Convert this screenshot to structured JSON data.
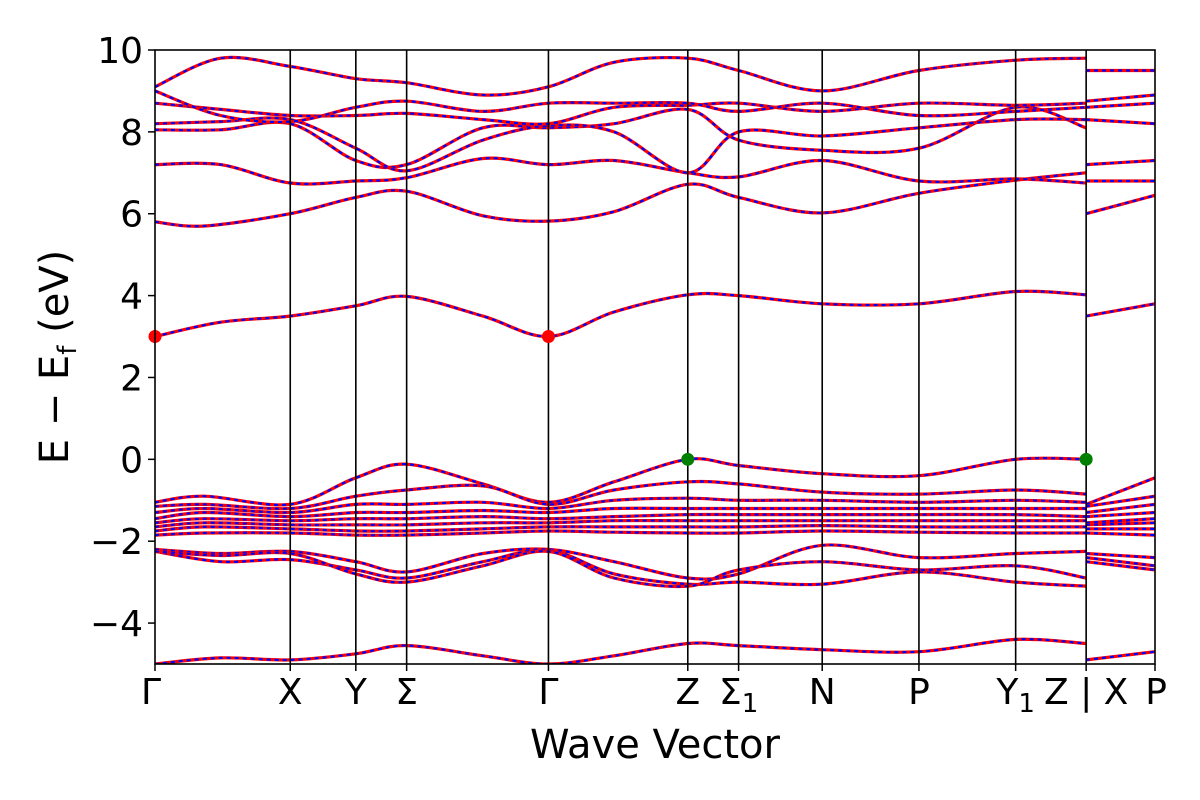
{
  "chart_data": {
    "type": "line",
    "xlabel": "Wave Vector",
    "ylabel_main": "E − E",
    "ylabel_sub": "f",
    "ylabel_unit": "(eV)",
    "ylim": [
      -5,
      10
    ],
    "y_ticks": [
      {
        "value": -4,
        "label": "−4"
      },
      {
        "value": -2,
        "label": "−2"
      },
      {
        "value": 0,
        "label": "0"
      },
      {
        "value": 2,
        "label": "2"
      },
      {
        "value": 4,
        "label": "4"
      },
      {
        "value": 6,
        "label": "6"
      },
      {
        "value": 8,
        "label": "8"
      },
      {
        "value": 10,
        "label": "10"
      }
    ],
    "xlim": [
      0,
      12.2
    ],
    "kpoints": [
      {
        "x": 0.0,
        "label": "Γ",
        "sub": ""
      },
      {
        "x": 1.65,
        "label": "X",
        "sub": ""
      },
      {
        "x": 2.45,
        "label": "Y",
        "sub": ""
      },
      {
        "x": 3.07,
        "label": "Σ",
        "sub": ""
      },
      {
        "x": 4.8,
        "label": "Γ",
        "sub": ""
      },
      {
        "x": 6.5,
        "label": "Z",
        "sub": ""
      },
      {
        "x": 7.12,
        "label": "Σ",
        "sub": "1"
      },
      {
        "x": 8.14,
        "label": "N",
        "sub": ""
      },
      {
        "x": 9.32,
        "label": "P",
        "sub": ""
      },
      {
        "x": 10.5,
        "label": "Y",
        "sub": "1"
      },
      {
        "x": 11.36,
        "label": "Z | X",
        "sub": ""
      },
      {
        "x": 12.2,
        "label": "P",
        "sub": ""
      }
    ],
    "band_colors": {
      "solid": "#ff0000",
      "dashed": "#0000ff"
    },
    "cbm_color": "#ff0000",
    "vbm_color": "#008000",
    "cbm_points": [
      {
        "x": 0.0,
        "y": 3.0
      },
      {
        "x": 4.8,
        "y": 3.0
      }
    ],
    "vbm_points": [
      {
        "x": 6.5,
        "y": 0.0
      },
      {
        "x": 11.36,
        "y": 0.0
      }
    ],
    "series": [
      {
        "x": [
          0,
          0.8,
          1.65,
          2.45,
          3.07,
          4.0,
          4.8,
          5.6,
          6.5,
          7.12,
          8.14,
          9.32,
          10.5,
          11.36
        ],
        "y": [
          3.0,
          3.35,
          3.5,
          3.75,
          3.98,
          3.5,
          3.0,
          3.6,
          4.02,
          4.0,
          3.8,
          3.8,
          4.1,
          4.02
        ]
      },
      {
        "x": [
          11.36,
          12.2
        ],
        "y": [
          3.5,
          3.8
        ]
      },
      {
        "x": [
          0,
          0.6,
          1.65,
          2.45,
          3.07,
          4.0,
          4.8,
          5.6,
          6.5,
          7.12,
          8.14,
          9.32,
          10.5,
          11.36
        ],
        "y": [
          5.8,
          5.7,
          6.0,
          6.4,
          6.55,
          5.95,
          5.82,
          6.05,
          6.72,
          6.4,
          6.02,
          6.5,
          6.82,
          7.0
        ]
      },
      {
        "x": [
          11.36,
          12.2
        ],
        "y": [
          6.0,
          6.45
        ]
      },
      {
        "x": [
          0,
          0.8,
          1.65,
          2.45,
          3.07,
          4.0,
          4.8,
          5.6,
          6.5,
          7.12,
          8.14,
          9.32,
          10.5,
          11.36
        ],
        "y": [
          7.2,
          7.2,
          6.75,
          6.8,
          6.88,
          7.35,
          7.2,
          7.3,
          7.0,
          6.9,
          7.3,
          6.8,
          6.85,
          6.75
        ]
      },
      {
        "x": [
          11.36,
          12.2
        ],
        "y": [
          6.8,
          6.8
        ]
      },
      {
        "x": [
          0,
          0.8,
          1.65,
          2.45,
          3.07,
          4.0,
          4.8,
          5.6,
          6.5,
          7.12,
          8.14,
          9.32,
          10.5,
          11.36
        ],
        "y": [
          8.05,
          8.05,
          8.2,
          7.3,
          7.2,
          8.1,
          8.1,
          8.2,
          8.55,
          7.8,
          7.55,
          7.6,
          8.6,
          8.1
        ]
      },
      {
        "x": [
          11.36,
          12.2
        ],
        "y": [
          7.2,
          7.3
        ]
      },
      {
        "x": [
          0,
          0.8,
          1.65,
          2.45,
          3.07,
          4.0,
          4.8,
          5.6,
          6.5,
          7.12,
          8.14,
          9.32,
          10.5,
          11.36
        ],
        "y": [
          8.2,
          8.25,
          8.3,
          7.6,
          7.05,
          7.8,
          8.15,
          8.0,
          7.0,
          8.0,
          7.9,
          8.1,
          8.3,
          8.3
        ]
      },
      {
        "x": [
          11.36,
          12.2
        ],
        "y": [
          8.3,
          8.2
        ]
      },
      {
        "x": [
          0,
          0.8,
          1.65,
          2.45,
          3.07,
          4.0,
          4.8,
          5.6,
          6.5,
          7.12,
          8.14,
          9.32,
          10.5,
          11.36
        ],
        "y": [
          8.7,
          8.55,
          8.4,
          8.4,
          8.45,
          8.3,
          8.2,
          8.6,
          8.65,
          8.7,
          8.5,
          8.7,
          8.65,
          8.7
        ]
      },
      {
        "x": [
          11.36,
          12.2
        ],
        "y": [
          8.75,
          8.9
        ]
      },
      {
        "x": [
          0,
          0.8,
          1.65,
          2.45,
          3.07,
          4.0,
          4.8,
          5.6,
          6.5,
          7.12,
          8.14,
          9.32,
          10.5,
          11.36
        ],
        "y": [
          9.0,
          8.4,
          8.25,
          8.6,
          8.75,
          8.5,
          8.7,
          8.7,
          8.7,
          8.5,
          8.7,
          8.4,
          8.5,
          8.6
        ]
      },
      {
        "x": [
          11.36,
          12.2
        ],
        "y": [
          8.6,
          8.7
        ]
      },
      {
        "x": [
          0,
          0.8,
          1.65,
          2.45,
          3.07,
          4.0,
          4.8,
          5.6,
          6.5,
          7.12,
          8.14,
          9.32,
          10.5,
          11.36
        ],
        "y": [
          9.1,
          9.8,
          9.6,
          9.3,
          9.2,
          8.9,
          9.1,
          9.7,
          9.8,
          9.5,
          9.0,
          9.5,
          9.75,
          9.8
        ]
      },
      {
        "x": [
          11.36,
          12.2
        ],
        "y": [
          9.5,
          9.5
        ]
      },
      {
        "x": [
          0,
          0.6,
          1.65,
          2.45,
          3.07,
          4.0,
          4.8,
          5.6,
          6.5,
          7.12,
          8.14,
          9.32,
          10.5,
          11.36
        ],
        "y": [
          -1.05,
          -0.9,
          -1.1,
          -0.45,
          -0.12,
          -0.6,
          -1.05,
          -0.55,
          0.0,
          -0.15,
          -0.35,
          -0.4,
          0.0,
          0.0
        ]
      },
      {
        "x": [
          11.36,
          12.2
        ],
        "y": [
          -1.1,
          -0.45
        ]
      },
      {
        "x": [
          0,
          0.6,
          1.65,
          2.45,
          3.07,
          4.0,
          4.8,
          5.6,
          6.5,
          7.12,
          8.14,
          9.32,
          10.5,
          11.36
        ],
        "y": [
          -1.15,
          -1.1,
          -1.2,
          -0.9,
          -0.75,
          -0.65,
          -1.1,
          -0.75,
          -0.55,
          -0.6,
          -0.8,
          -0.85,
          -0.75,
          -0.85
        ]
      },
      {
        "x": [
          11.36,
          12.2
        ],
        "y": [
          -1.15,
          -0.9
        ]
      },
      {
        "x": [
          0,
          0.6,
          1.65,
          2.45,
          3.07,
          4.0,
          4.8,
          5.6,
          6.5,
          7.12,
          8.14,
          9.32,
          10.5,
          11.36
        ],
        "y": [
          -1.3,
          -1.2,
          -1.3,
          -1.1,
          -1.1,
          -1.05,
          -1.2,
          -1.0,
          -0.95,
          -1.0,
          -1.0,
          -1.05,
          -1.0,
          -1.05
        ]
      },
      {
        "x": [
          11.36,
          12.2
        ],
        "y": [
          -1.3,
          -1.1
        ]
      },
      {
        "x": [
          0,
          0.6,
          1.65,
          2.45,
          3.07,
          4.0,
          4.8,
          5.6,
          6.5,
          7.12,
          8.14,
          9.32,
          10.5,
          11.36
        ],
        "y": [
          -1.45,
          -1.3,
          -1.4,
          -1.3,
          -1.3,
          -1.25,
          -1.3,
          -1.2,
          -1.2,
          -1.2,
          -1.2,
          -1.2,
          -1.2,
          -1.2
        ]
      },
      {
        "x": [
          11.36,
          12.2
        ],
        "y": [
          -1.4,
          -1.3
        ]
      },
      {
        "x": [
          0,
          0.6,
          1.65,
          2.45,
          3.07,
          4.0,
          4.8,
          5.6,
          6.5,
          7.12,
          8.14,
          9.32,
          10.5,
          11.36
        ],
        "y": [
          -1.55,
          -1.45,
          -1.5,
          -1.45,
          -1.45,
          -1.4,
          -1.45,
          -1.4,
          -1.35,
          -1.35,
          -1.35,
          -1.35,
          -1.35,
          -1.4
        ]
      },
      {
        "x": [
          11.36,
          12.2
        ],
        "y": [
          -1.55,
          -1.45
        ]
      },
      {
        "x": [
          0,
          0.6,
          1.65,
          2.45,
          3.07,
          4.0,
          4.8,
          5.6,
          6.5,
          7.12,
          8.14,
          9.32,
          10.5,
          11.36
        ],
        "y": [
          -1.65,
          -1.55,
          -1.6,
          -1.6,
          -1.6,
          -1.55,
          -1.55,
          -1.5,
          -1.5,
          -1.5,
          -1.5,
          -1.5,
          -1.5,
          -1.5
        ]
      },
      {
        "x": [
          11.36,
          12.2
        ],
        "y": [
          -1.6,
          -1.55
        ]
      },
      {
        "x": [
          0,
          0.6,
          1.65,
          2.45,
          3.07,
          4.0,
          4.8,
          5.6,
          6.5,
          7.12,
          8.14,
          9.32,
          10.5,
          11.36
        ],
        "y": [
          -1.75,
          -1.65,
          -1.7,
          -1.75,
          -1.75,
          -1.7,
          -1.65,
          -1.65,
          -1.65,
          -1.65,
          -1.62,
          -1.65,
          -1.65,
          -1.65
        ]
      },
      {
        "x": [
          11.36,
          12.2
        ],
        "y": [
          -1.7,
          -1.7
        ]
      },
      {
        "x": [
          0,
          0.6,
          1.65,
          2.45,
          3.07,
          4.0,
          4.8,
          5.6,
          6.5,
          7.12,
          8.14,
          9.32,
          10.5,
          11.36
        ],
        "y": [
          -1.85,
          -1.8,
          -1.8,
          -1.85,
          -1.85,
          -1.8,
          -1.75,
          -1.78,
          -1.8,
          -1.8,
          -1.75,
          -1.78,
          -1.8,
          -1.8
        ]
      },
      {
        "x": [
          11.36,
          12.2
        ],
        "y": [
          -1.8,
          -1.85
        ]
      },
      {
        "x": [
          0,
          0.8,
          1.65,
          2.45,
          3.07,
          4.0,
          4.8,
          5.6,
          6.5,
          7.12,
          8.14,
          9.32,
          10.5,
          11.36
        ],
        "y": [
          -2.2,
          -2.3,
          -2.25,
          -2.5,
          -2.75,
          -2.3,
          -2.2,
          -2.5,
          -2.9,
          -2.8,
          -2.1,
          -2.4,
          -2.3,
          -2.25
        ]
      },
      {
        "x": [
          11.36,
          12.2
        ],
        "y": [
          -2.3,
          -2.4
        ]
      },
      {
        "x": [
          0,
          0.8,
          1.65,
          2.45,
          3.07,
          4.0,
          4.8,
          5.6,
          6.5,
          7.12,
          8.14,
          9.32,
          10.5,
          11.36
        ],
        "y": [
          -2.25,
          -2.5,
          -2.45,
          -2.7,
          -2.9,
          -2.5,
          -2.22,
          -2.8,
          -3.05,
          -3.0,
          -3.05,
          -2.75,
          -3.0,
          -3.1
        ]
      },
      {
        "x": [
          11.36,
          12.2
        ],
        "y": [
          -2.4,
          -2.6
        ]
      },
      {
        "x": [
          0,
          0.8,
          1.65,
          2.45,
          3.07,
          4.0,
          4.8,
          5.6,
          6.5,
          7.12,
          8.14,
          9.32,
          10.5,
          11.36
        ],
        "y": [
          -2.25,
          -2.35,
          -2.3,
          -2.8,
          -3.0,
          -2.6,
          -2.25,
          -2.9,
          -3.1,
          -2.7,
          -2.5,
          -2.7,
          -2.6,
          -2.9
        ]
      },
      {
        "x": [
          11.36,
          12.2
        ],
        "y": [
          -2.5,
          -2.7
        ]
      },
      {
        "x": [
          0,
          0.8,
          1.65,
          2.45,
          3.07,
          4.0,
          4.8,
          5.6,
          6.5,
          7.12,
          8.14,
          9.32,
          10.5,
          11.36
        ],
        "y": [
          -5.0,
          -4.85,
          -4.9,
          -4.75,
          -4.55,
          -4.8,
          -5.0,
          -4.8,
          -4.5,
          -4.55,
          -4.65,
          -4.7,
          -4.4,
          -4.5
        ]
      },
      {
        "x": [
          11.36,
          12.2
        ],
        "y": [
          -4.9,
          -4.7
        ]
      }
    ]
  }
}
